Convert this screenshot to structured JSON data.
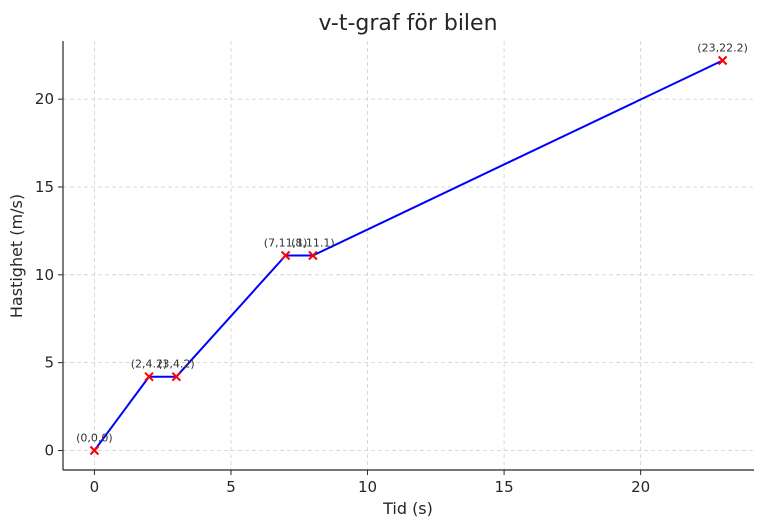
{
  "chart_data": {
    "type": "line",
    "title": "v-t-graf för bilen",
    "xlabel": "Tid (s)",
    "ylabel": "Hastighet (m/s)",
    "xlim": [
      -1.15,
      24.15
    ],
    "ylim": [
      -1.11,
      23.31
    ],
    "xticks": [
      0,
      5,
      10,
      15,
      20
    ],
    "yticks": [
      0,
      5,
      10,
      15,
      20
    ],
    "grid": true,
    "series": [
      {
        "x": [
          0,
          2,
          3,
          7,
          8,
          23
        ],
        "y": [
          0,
          4.2,
          4.2,
          11.1,
          11.1,
          22.2
        ],
        "line_color": "#0000ff",
        "marker": "x",
        "marker_color": "#ff0000"
      }
    ],
    "annotations": [
      "(0,0.0)",
      "(2,4.2)",
      "(3,4.2)",
      "(7,11.1)",
      "(8,11.1)",
      "(23,22.2)"
    ]
  }
}
